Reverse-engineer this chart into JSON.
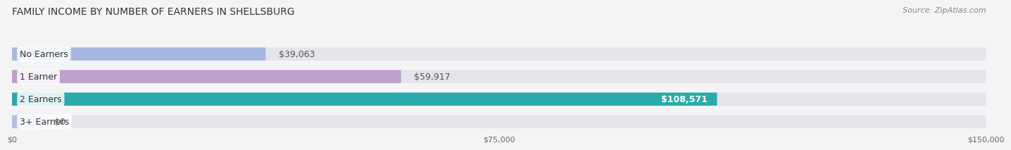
{
  "title": "FAMILY INCOME BY NUMBER OF EARNERS IN SHELLSBURG",
  "source": "Source: ZipAtlas.com",
  "categories": [
    "No Earners",
    "1 Earner",
    "2 Earners",
    "3+ Earners"
  ],
  "values": [
    39063,
    59917,
    108571,
    0
  ],
  "bar_colors": [
    "#a8b8e0",
    "#c0a0cc",
    "#2aabab",
    "#b8c0e0"
  ],
  "bar_bg_color": "#e4e4ea",
  "label_colors": [
    "#444444",
    "#444444",
    "#ffffff",
    "#444444"
  ],
  "value_labels": [
    "$39,063",
    "$59,917",
    "$108,571",
    "$0"
  ],
  "value_label_colors": [
    "#555555",
    "#555555",
    "#ffffff",
    "#555555"
  ],
  "xlim": [
    0,
    150000
  ],
  "xticks": [
    0,
    75000,
    150000
  ],
  "xtick_labels": [
    "$0",
    "$75,000",
    "$150,000"
  ],
  "bg_color": "#f4f4f6",
  "title_fontsize": 10,
  "source_fontsize": 8,
  "label_fontsize": 9,
  "value_fontsize": 9
}
